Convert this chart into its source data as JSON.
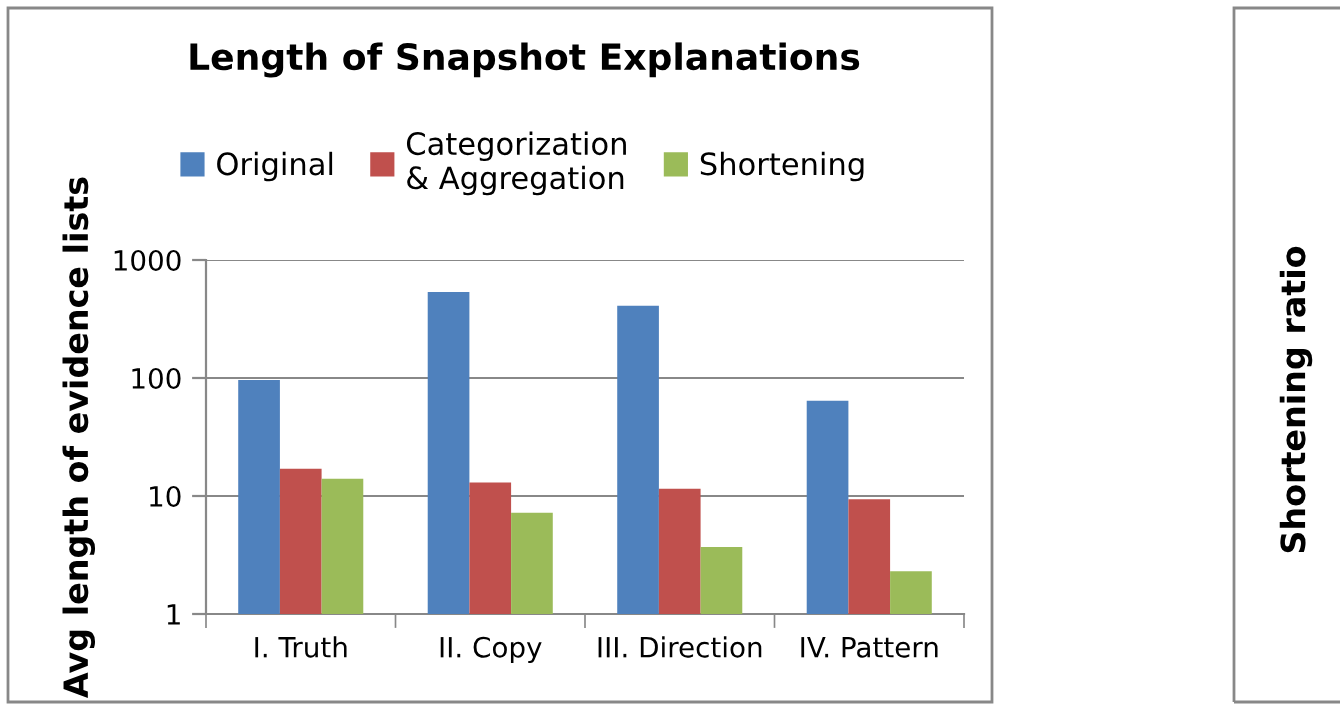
{
  "chart_data": [
    {
      "type": "bar",
      "title": "Length of Snapshot Explanations",
      "ylabel": "Avg length of evidence lists",
      "categories": [
        "I. Truth",
        "II. Copy",
        "III. Direction",
        "IV. Pattern"
      ],
      "series": [
        {
          "name": "Original",
          "color": "#4f81bd",
          "values": [
            96,
            535,
            410,
            64
          ]
        },
        {
          "name": "Categorization\n& Aggregation",
          "color": "#c0504d",
          "values": [
            17,
            13,
            11.5,
            9.4
          ]
        },
        {
          "name": "Shortening",
          "color": "#9bbb59",
          "values": [
            14,
            7.2,
            3.7,
            2.3
          ]
        }
      ],
      "log": true,
      "ylim": [
        1,
        1000
      ],
      "yticks": [
        1,
        10,
        100,
        1000
      ],
      "grid": "y",
      "legend": "top"
    },
    {
      "type": "other",
      "ylabel": "Shortening ratio"
    }
  ]
}
